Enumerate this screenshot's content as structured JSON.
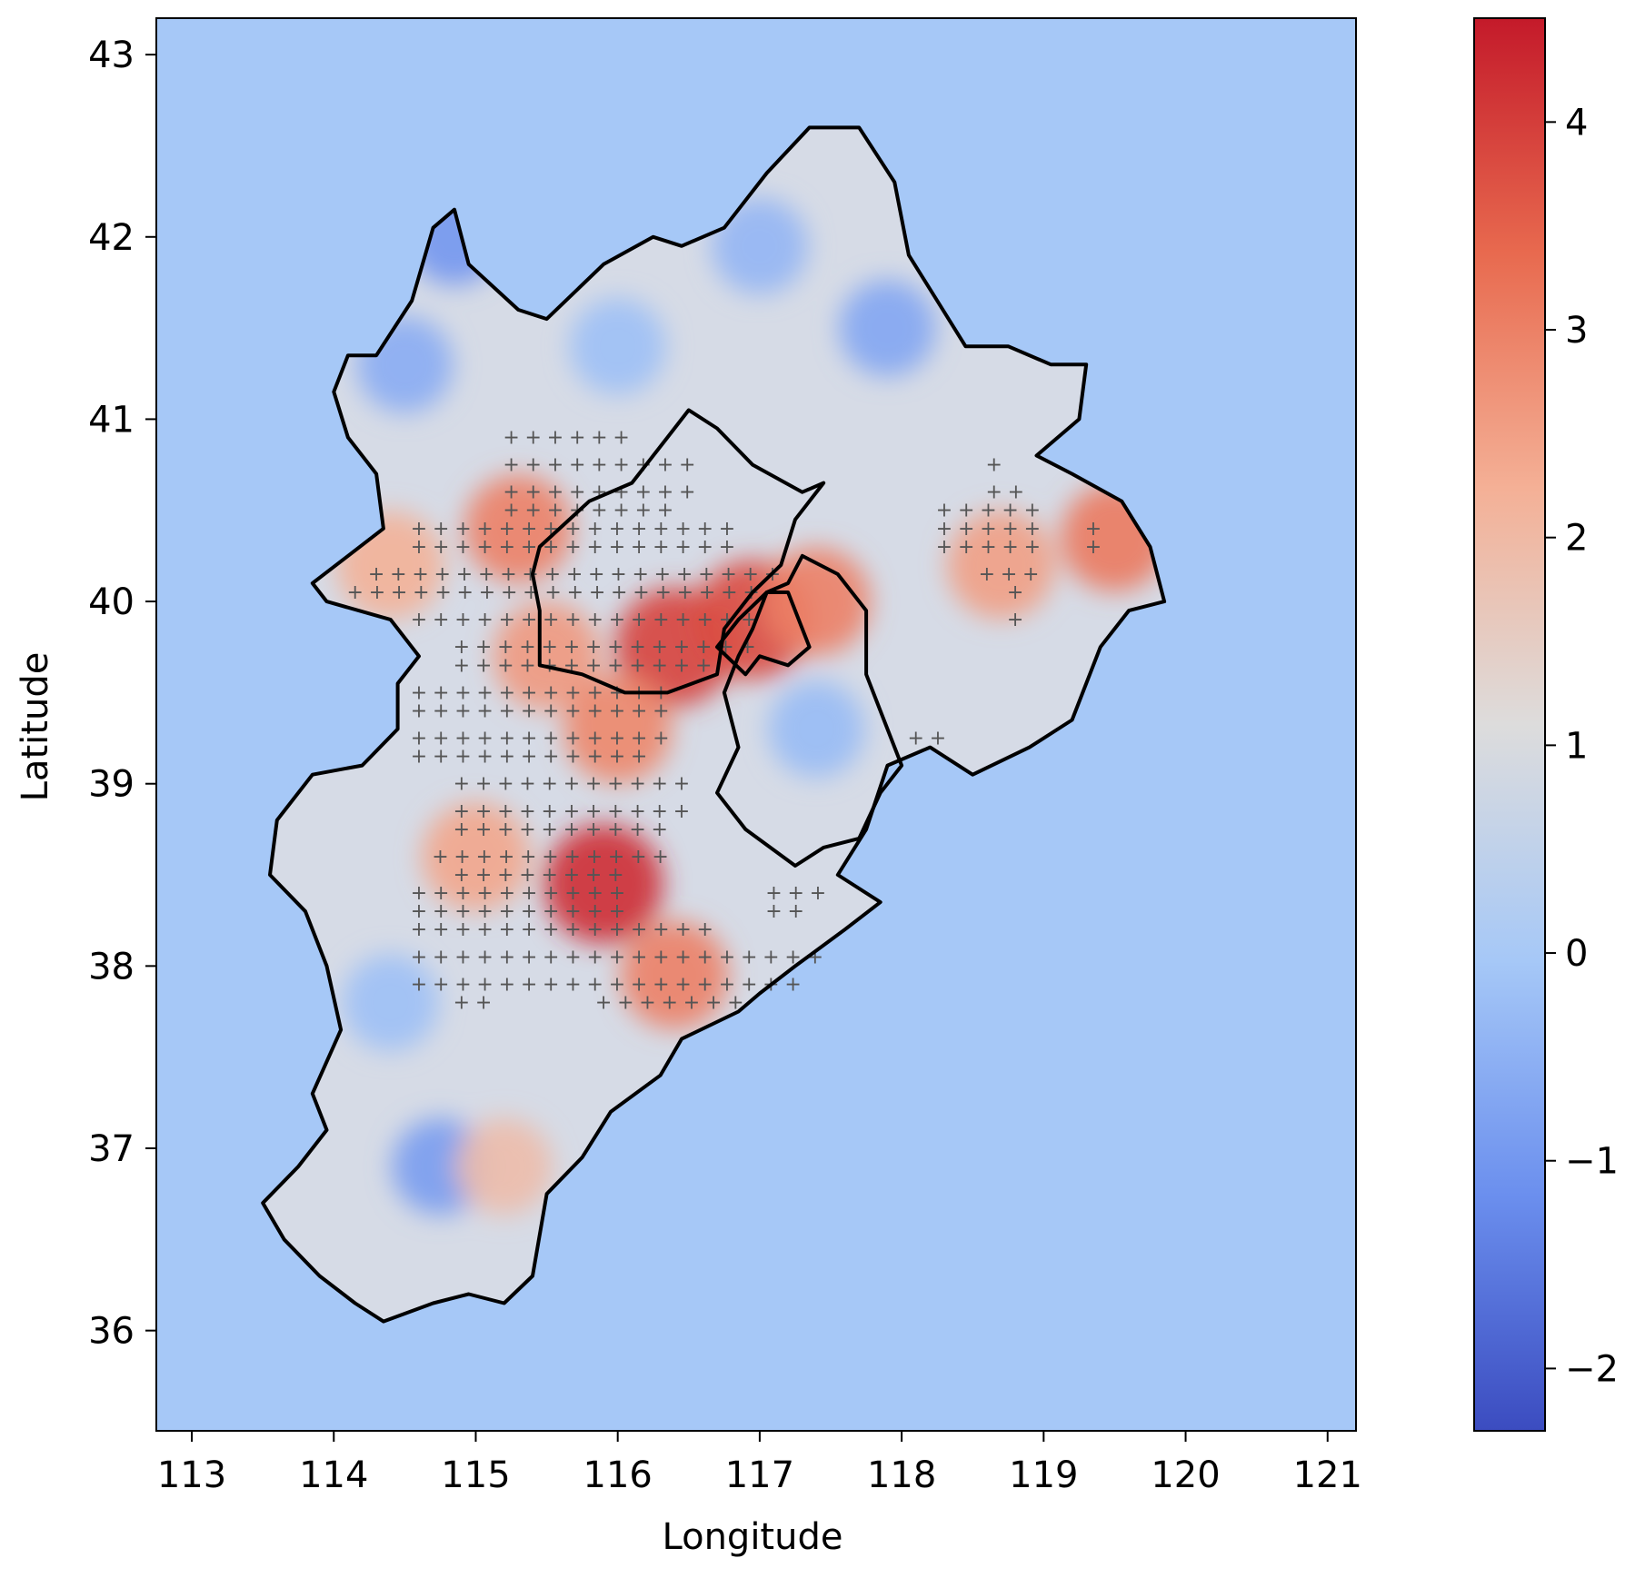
{
  "map": {
    "xlabel": "Longitude",
    "ylabel": "Latitude",
    "xlim": [
      112.75,
      121.2
    ],
    "ylim": [
      35.45,
      43.2
    ],
    "x_ticks": [
      "113",
      "114",
      "115",
      "116",
      "117",
      "118",
      "119",
      "120",
      "121"
    ],
    "y_ticks": [
      "36",
      "37",
      "38",
      "39",
      "40",
      "41",
      "42",
      "43"
    ],
    "x_tick_values": [
      113,
      114,
      115,
      116,
      117,
      118,
      119,
      120,
      121
    ],
    "y_tick_values": [
      36,
      37,
      38,
      39,
      40,
      41,
      42,
      43
    ],
    "background_color": "#a6c8f7",
    "outline_color": "#000000",
    "marker": "+",
    "marker_color": "#555555"
  },
  "colorbar": {
    "min": -2.3,
    "max": 4.5,
    "ticks": [
      "4",
      "3",
      "2",
      "1",
      "0",
      "−1",
      "−2"
    ],
    "tick_values": [
      4,
      3,
      2,
      1,
      0,
      -1,
      -2
    ],
    "colors": [
      "#3b4cc0",
      "#6b8fee",
      "#a6c8f7",
      "#dddcdc",
      "#f4b096",
      "#e86a4f",
      "#c41a2a"
    ]
  },
  "chart_data": {
    "type": "heatmap",
    "title": "",
    "xlabel": "Longitude",
    "ylabel": "Latitude",
    "xlim": [
      112.75,
      121.2
    ],
    "ylim": [
      35.45,
      43.2
    ],
    "value_range": [
      -2.3,
      4.5
    ],
    "colormap": "coolwarm",
    "ocean_value": 0.2,
    "hotspots": [
      {
        "lon": 115.9,
        "lat": 38.45,
        "value": 4.2
      },
      {
        "lon": 116.4,
        "lat": 39.75,
        "value": 3.9
      },
      {
        "lon": 116.95,
        "lat": 39.9,
        "value": 3.8
      },
      {
        "lon": 115.3,
        "lat": 40.4,
        "value": 3.0
      },
      {
        "lon": 116.4,
        "lat": 37.95,
        "value": 3.0
      },
      {
        "lon": 119.5,
        "lat": 40.35,
        "value": 3.1
      },
      {
        "lon": 118.7,
        "lat": 40.2,
        "value": 2.5
      },
      {
        "lon": 117.4,
        "lat": 40.0,
        "value": 3.0
      },
      {
        "lon": 115.5,
        "lat": 39.7,
        "value": 2.6
      },
      {
        "lon": 114.4,
        "lat": 40.2,
        "value": 2.2
      },
      {
        "lon": 115.2,
        "lat": 36.9,
        "value": 1.9
      },
      {
        "lon": 116.0,
        "lat": 39.3,
        "value": 2.9
      },
      {
        "lon": 115.0,
        "lat": 38.6,
        "value": 2.4
      }
    ],
    "coldspots": [
      {
        "lon": 114.85,
        "lat": 42.0,
        "value": -1.0
      },
      {
        "lon": 114.5,
        "lat": 41.3,
        "value": -0.6
      },
      {
        "lon": 117.9,
        "lat": 41.5,
        "value": -0.7
      },
      {
        "lon": 117.0,
        "lat": 41.95,
        "value": -0.4
      },
      {
        "lon": 114.75,
        "lat": 36.9,
        "value": -0.9
      },
      {
        "lon": 117.4,
        "lat": 39.3,
        "value": -0.3
      },
      {
        "lon": 114.4,
        "lat": 37.8,
        "value": -0.2
      },
      {
        "lon": 116.0,
        "lat": 41.4,
        "value": -0.2
      }
    ],
    "significance_rows": [
      {
        "lat": 40.9,
        "lons": [
          [
            115.25,
            116.15
          ]
        ]
      },
      {
        "lat": 40.75,
        "lons": [
          [
            115.25,
            116.6
          ],
          [
            118.65,
            118.8
          ]
        ]
      },
      {
        "lat": 40.6,
        "lons": [
          [
            115.25,
            116.6
          ],
          [
            118.65,
            118.95
          ]
        ]
      },
      {
        "lat": 40.5,
        "lons": [
          [
            115.25,
            116.45
          ],
          [
            118.3,
            118.95
          ]
        ]
      },
      {
        "lat": 40.4,
        "lons": [
          [
            114.6,
            116.9
          ],
          [
            118.3,
            118.95
          ],
          [
            119.35,
            119.5
          ]
        ]
      },
      {
        "lat": 40.3,
        "lons": [
          [
            114.6,
            116.9
          ],
          [
            118.3,
            118.95
          ],
          [
            119.35,
            119.5
          ]
        ]
      },
      {
        "lat": 40.15,
        "lons": [
          [
            114.3,
            117.2
          ],
          [
            118.6,
            118.95
          ]
        ]
      },
      {
        "lat": 40.05,
        "lons": [
          [
            114.15,
            117.05
          ],
          [
            118.8,
            118.95
          ]
        ]
      },
      {
        "lat": 39.9,
        "lons": [
          [
            114.6,
            117.05
          ],
          [
            118.8,
            118.95
          ]
        ]
      },
      {
        "lat": 39.75,
        "lons": [
          [
            114.9,
            117.05
          ]
        ]
      },
      {
        "lat": 39.65,
        "lons": [
          [
            114.9,
            116.75
          ]
        ]
      },
      {
        "lat": 39.5,
        "lons": [
          [
            114.6,
            116.45
          ]
        ]
      },
      {
        "lat": 39.4,
        "lons": [
          [
            114.6,
            116.45
          ]
        ]
      },
      {
        "lat": 39.25,
        "lons": [
          [
            114.6,
            116.45
          ],
          [
            118.1,
            118.3
          ]
        ]
      },
      {
        "lat": 39.15,
        "lons": [
          [
            114.6,
            116.3
          ]
        ]
      },
      {
        "lat": 39.0,
        "lons": [
          [
            114.9,
            116.45
          ]
        ]
      },
      {
        "lat": 38.85,
        "lons": [
          [
            114.9,
            116.45
          ]
        ]
      },
      {
        "lat": 38.75,
        "lons": [
          [
            114.9,
            116.3
          ]
        ]
      },
      {
        "lat": 38.6,
        "lons": [
          [
            114.75,
            116.3
          ]
        ]
      },
      {
        "lat": 38.5,
        "lons": [
          [
            114.9,
            116.0
          ]
        ]
      },
      {
        "lat": 38.4,
        "lons": [
          [
            114.6,
            116.0
          ],
          [
            117.1,
            117.45
          ]
        ]
      },
      {
        "lat": 38.3,
        "lons": [
          [
            114.6,
            116.0
          ],
          [
            117.1,
            117.3
          ]
        ]
      },
      {
        "lat": 38.2,
        "lons": [
          [
            114.6,
            116.75
          ]
        ]
      },
      {
        "lat": 38.05,
        "lons": [
          [
            114.6,
            117.45
          ]
        ]
      },
      {
        "lat": 37.9,
        "lons": [
          [
            114.6,
            117.3
          ]
        ]
      },
      {
        "lat": 37.8,
        "lons": [
          [
            114.9,
            115.1
          ],
          [
            115.9,
            116.9
          ]
        ]
      }
    ]
  }
}
